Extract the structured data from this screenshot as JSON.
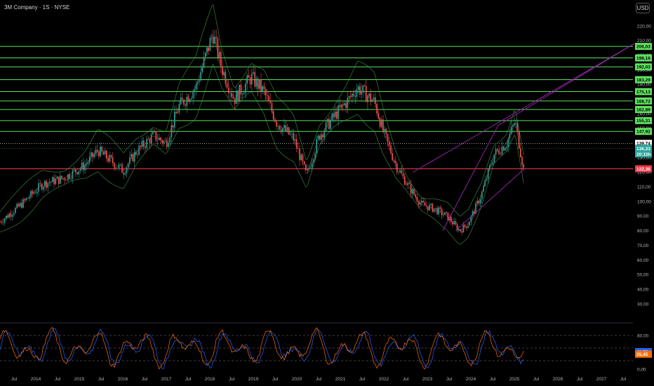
{
  "header": {
    "title": "3M Company · 1S · NYSE",
    "currency": "USD"
  },
  "chart_data": [
    {
      "type": "candlestick",
      "title": "3M Company · 1S · NYSE",
      "y_ticks": [
        220,
        210,
        200,
        190,
        180,
        170,
        160,
        150,
        140,
        130,
        120,
        110,
        100,
        90,
        80,
        70,
        60,
        50,
        40,
        30
      ],
      "y_tick_labels": [
        "220,00",
        "210,00",
        "200,00",
        "190,00",
        "180,00",
        "170,00",
        "160,00",
        "150,00",
        "140,00",
        "130,00",
        "120,00",
        "110,00",
        "100,00",
        "90,00",
        "80,00",
        "70,00",
        "60,00",
        "50,00",
        "40,00",
        "30,00"
      ],
      "x_labels": [
        "Jul",
        "2014",
        "Jul",
        "2015",
        "Jul",
        "2016",
        "Jul",
        "2017",
        "Jul",
        "2018",
        "Jul",
        "2019",
        "Jul",
        "2020",
        "Jul",
        "2021",
        "Jul",
        "2022",
        "Jul",
        "2023",
        "Jul",
        "2024",
        "Jul",
        "2025",
        "Jul",
        "2026",
        "Jul",
        "2027",
        "Jul"
      ],
      "price_path": [
        [
          "2013.0",
          86
        ],
        [
          "2013.5",
          98
        ],
        [
          "2014.0",
          112
        ],
        [
          "2014.5",
          116
        ],
        [
          "2015.0",
          125
        ],
        [
          "2015.3",
          135
        ],
        [
          "2015.6",
          128
        ],
        [
          "2015.9",
          121
        ],
        [
          "2016.2",
          134
        ],
        [
          "2016.6",
          145
        ],
        [
          "2016.9",
          140
        ],
        [
          "2017.2",
          165
        ],
        [
          "2017.6",
          178
        ],
        [
          "2018.0",
          215
        ],
        [
          "2018.2",
          192
        ],
        [
          "2018.5",
          170
        ],
        [
          "2018.9",
          185
        ],
        [
          "2019.2",
          175
        ],
        [
          "2019.5",
          154
        ],
        [
          "2019.9",
          143
        ],
        [
          "2020.2",
          118
        ],
        [
          "2020.5",
          145
        ],
        [
          "2020.9",
          160
        ],
        [
          "2021.2",
          170
        ],
        [
          "2021.4",
          178
        ],
        [
          "2021.8",
          168
        ],
        [
          "2022.0",
          148
        ],
        [
          "2022.3",
          125
        ],
        [
          "2022.6",
          110
        ],
        [
          "2022.9",
          98
        ],
        [
          "2023.2",
          95
        ],
        [
          "2023.5",
          90
        ],
        [
          "2023.8",
          80
        ],
        [
          "2024.0",
          85
        ],
        [
          "2024.3",
          104
        ],
        [
          "2024.6",
          132
        ],
        [
          "2024.9",
          140
        ],
        [
          "2025.1",
          155
        ],
        [
          "2025.3",
          122
        ]
      ],
      "horizontal_levels": [
        {
          "value": 206.03,
          "label": "206,03",
          "color": "#5ee35e"
        },
        {
          "value": 198.16,
          "label": "198,16",
          "color": "#5ee35e"
        },
        {
          "value": 192.03,
          "label": "192,03",
          "color": "#5ee35e"
        },
        {
          "value": 183.29,
          "label": "183,29",
          "color": "#5ee35e"
        },
        {
          "value": 175.13,
          "label": "175,13",
          "color": "#5ee35e"
        },
        {
          "value": 168.72,
          "label": "168,72",
          "color": "#5ee35e"
        },
        {
          "value": 162.89,
          "label": "162,89",
          "color": "#5ee35e"
        },
        {
          "value": 155.31,
          "label": "155,31",
          "color": "#5ee35e"
        },
        {
          "value": 147.92,
          "label": "147,92",
          "color": "#5ee35e"
        },
        {
          "value": 122.38,
          "label": "122,38",
          "color": "#f23645"
        }
      ],
      "current_price": {
        "value": 136.33,
        "label": "136,33",
        "countdown": "20:15h",
        "color": "#26a69a"
      },
      "prev_close": {
        "value": 139.74,
        "label": "139,74"
      },
      "trendlines": [
        {
          "from": [
            "2022.7",
            120
          ],
          "to": [
            "2027.9",
            208
          ],
          "color": "#9c27b0"
        },
        {
          "from": [
            "2024.7",
            152
          ],
          "to": [
            "2027.9",
            208
          ],
          "color": "#9c27b0"
        },
        {
          "from": [
            "2023.7",
            80
          ],
          "to": [
            "2025.3",
            122
          ],
          "color": "#9c27b0"
        },
        {
          "from": [
            "2023.4",
            80
          ],
          "to": [
            "2024.7",
            152
          ],
          "color": "#9c27b0"
        }
      ]
    },
    {
      "type": "line",
      "title": "Stochastic RSI",
      "y_ticks": [
        80,
        0
      ],
      "y_tick_labels": [
        "80,00",
        "0,00"
      ],
      "guide_levels": [
        80,
        50,
        20
      ],
      "series": [
        {
          "value": 41.76,
          "label": "41,76",
          "color": "#2962ff"
        },
        {
          "value": 35.45,
          "label": "35,45",
          "color": "#ff6d00"
        }
      ]
    }
  ]
}
